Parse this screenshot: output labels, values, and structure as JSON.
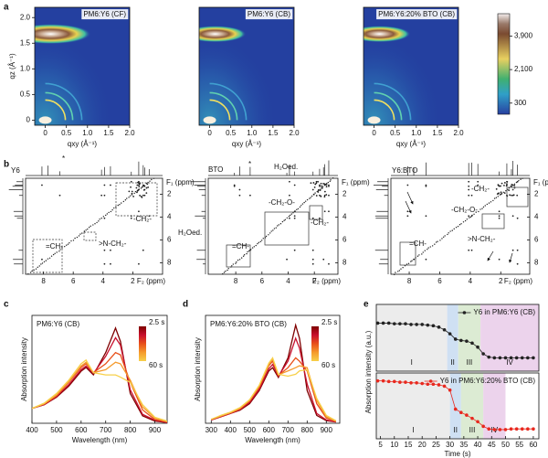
{
  "panel_labels": [
    "a",
    "b",
    "c",
    "d",
    "e"
  ],
  "chart_data": [
    {
      "type": "heatmap",
      "title": "PM6:Y6 (CF)",
      "xlabel": "qxy (Å⁻¹)",
      "ylabel": "qz (Å⁻¹)",
      "xlim": [
        -0.25,
        2.0
      ],
      "ylim": [
        -0.1,
        2.2
      ],
      "xticks": [
        0,
        0.5,
        {
          "value": 1,
          "label": "1.0"
        },
        1.5,
        {
          "value": 2,
          "label": "2.0"
        }
      ],
      "yticks": [
        0,
        0.5,
        {
          "value": 1,
          "label": "1.0"
        },
        1.5,
        {
          "value": 2,
          "label": "2.0"
        }
      ]
    },
    {
      "type": "heatmap",
      "title": "PM6:Y6 (CB)",
      "xlabel": "qxy (Å⁻¹)",
      "xlim": [
        -0.25,
        2.0
      ],
      "ylim": [
        -0.1,
        2.2
      ],
      "xticks": [
        0,
        0.5,
        {
          "value": 1,
          "label": "1.0"
        },
        1.5,
        {
          "value": 2,
          "label": "2.0"
        }
      ]
    },
    {
      "type": "heatmap",
      "title": "PM6:Y6:20% BTO (CB)",
      "xlabel": "qxy (Å⁻¹)",
      "xlim": [
        -0.25,
        2.0
      ],
      "ylim": [
        -0.1,
        2.2
      ],
      "xticks": [
        0,
        0.5,
        {
          "value": 1,
          "label": "1.0"
        },
        1.5,
        {
          "value": 2,
          "label": "2.0"
        }
      ]
    },
    {
      "type": "colorbar",
      "clim": [
        -300,
        5100
      ],
      "ticks": [
        300,
        {
          "value": 2100,
          "label": "2,100"
        },
        {
          "value": 3900,
          "label": "3,900"
        }
      ]
    },
    {
      "type": "nmr",
      "label": "Y6",
      "xlabel": "F₂ (ppm)",
      "ylabel": "F₁ (ppm)",
      "xlim": [
        9.2,
        0
      ],
      "ylim": [
        0.6,
        9.0
      ],
      "xticks": [
        8,
        6,
        4,
        2
      ],
      "yticks": [
        2,
        4,
        6,
        8
      ],
      "annotations": [
        "*",
        "=CH-",
        ">N-CH₂-",
        "-CH₂-"
      ]
    },
    {
      "type": "nmr",
      "label": "BTO",
      "xlabel": "F₂ (ppm)",
      "ylabel": "F₁ (ppm)",
      "xlim": [
        10.1,
        0.2
      ],
      "ylim": [
        0.6,
        9.0
      ],
      "xticks": [
        8,
        6,
        4,
        2
      ],
      "yticks": [
        2,
        4,
        6,
        8
      ],
      "annotations": [
        "*",
        "H₂Oed.",
        "-CH₂-O-",
        "-CH₂-",
        "H₂Oed.",
        "=CH-"
      ]
    },
    {
      "type": "nmr",
      "label": "Y6:BTO",
      "xlabel": "F₂ (ppm)",
      "ylabel": "F₁ (ppm)",
      "xlim": [
        9.2,
        0.1
      ],
      "ylim": [
        0.6,
        9.0
      ],
      "xticks": [
        8,
        6,
        4,
        2
      ],
      "yticks": [
        2,
        4,
        6,
        8
      ],
      "annotations": [
        "-CH₂-",
        "-CH₂-O-",
        ">N-CH₂-",
        "=CH-"
      ]
    },
    {
      "type": "line",
      "title": "PM6:Y6 (CB)",
      "xlabel": "Wavelength (nm)",
      "ylabel": "Absorption intensity",
      "x": [
        400,
        450,
        500,
        550,
        600,
        620,
        650,
        700,
        740,
        760,
        800,
        850,
        900,
        950
      ],
      "xlim": [
        400,
        950
      ],
      "xticks": [
        400,
        500,
        600,
        700,
        800,
        900
      ],
      "ylim": [
        0,
        1.45
      ],
      "legend_labels": [
        "2.5 s",
        "60 s"
      ],
      "series": [
        {
          "color": "#7f0000",
          "values": [
            0.2,
            0.25,
            0.35,
            0.5,
            0.7,
            0.75,
            0.65,
            0.95,
            1.28,
            1.1,
            0.4,
            0.1,
            0.03,
            0.01
          ]
        },
        {
          "color": "#c8102e",
          "values": [
            0.2,
            0.25,
            0.36,
            0.52,
            0.72,
            0.77,
            0.67,
            0.9,
            1.15,
            1.05,
            0.45,
            0.12,
            0.04,
            0.01
          ]
        },
        {
          "color": "#e8501a",
          "values": [
            0.2,
            0.26,
            0.37,
            0.55,
            0.75,
            0.8,
            0.68,
            0.8,
            0.95,
            0.92,
            0.55,
            0.18,
            0.05,
            0.02
          ]
        },
        {
          "color": "#f59a2c",
          "values": [
            0.2,
            0.26,
            0.38,
            0.56,
            0.77,
            0.82,
            0.68,
            0.72,
            0.82,
            0.8,
            0.58,
            0.22,
            0.07,
            0.02
          ]
        },
        {
          "color": "#f7d04a",
          "values": [
            0.2,
            0.27,
            0.4,
            0.58,
            0.8,
            0.85,
            0.68,
            0.65,
            0.65,
            0.62,
            0.55,
            0.25,
            0.08,
            0.03
          ]
        }
      ]
    },
    {
      "type": "line",
      "title": "PM6:Y6:20% BTO (CB)",
      "xlabel": "Wavelength (nm)",
      "ylabel": "Absorption intensity",
      "x": [
        300,
        350,
        400,
        450,
        500,
        550,
        600,
        620,
        650,
        700,
        740,
        760,
        800,
        850,
        900,
        950
      ],
      "xlim": [
        270,
        970
      ],
      "xticks": [
        300,
        400,
        500,
        600,
        700,
        800,
        900
      ],
      "ylim": [
        0,
        1.65
      ],
      "legend_labels": [
        "2.5 s",
        "60 s"
      ],
      "series": [
        {
          "color": "#7f0000",
          "values": [
            0.05,
            0.1,
            0.15,
            0.2,
            0.3,
            0.5,
            0.8,
            0.85,
            0.7,
            1.0,
            1.5,
            1.3,
            0.5,
            0.12,
            0.04,
            0.02
          ]
        },
        {
          "color": "#c8102e",
          "values": [
            0.05,
            0.1,
            0.15,
            0.21,
            0.32,
            0.52,
            0.83,
            0.9,
            0.72,
            0.95,
            1.3,
            1.15,
            0.6,
            0.15,
            0.05,
            0.02
          ]
        },
        {
          "color": "#e8501a",
          "values": [
            0.06,
            0.11,
            0.16,
            0.22,
            0.34,
            0.55,
            0.88,
            0.95,
            0.73,
            0.85,
            1.0,
            0.95,
            0.8,
            0.3,
            0.08,
            0.03
          ]
        },
        {
          "color": "#f59a2c",
          "values": [
            0.06,
            0.11,
            0.16,
            0.23,
            0.35,
            0.57,
            0.9,
            0.98,
            0.74,
            0.8,
            0.85,
            0.88,
            0.85,
            0.35,
            0.1,
            0.03
          ]
        },
        {
          "color": "#f7d04a",
          "values": [
            0.06,
            0.12,
            0.17,
            0.24,
            0.36,
            0.58,
            0.92,
            1.0,
            0.75,
            0.72,
            0.75,
            0.8,
            0.82,
            0.38,
            0.12,
            0.04
          ]
        }
      ]
    },
    {
      "type": "kinetics",
      "ylabel": "Absorption intensity (a.u.)",
      "x": [
        4,
        6,
        8,
        10,
        12,
        14,
        16,
        18,
        20,
        22,
        24,
        26,
        28,
        30,
        32,
        34,
        36,
        38,
        40,
        42,
        44,
        46,
        48,
        50,
        52,
        54,
        56,
        58,
        60
      ],
      "xlim": [
        3.5,
        62
      ],
      "ylim": [
        0,
        1
      ],
      "regions": [
        {
          "label": "I",
          "start": 3.5,
          "end": 29,
          "color": "#ececec"
        },
        {
          "label": "II",
          "start": 29,
          "end": 33,
          "color": "#cfe0f3"
        },
        {
          "label": "III",
          "start": 33,
          "end": 41,
          "color": "#dcebd3"
        },
        {
          "label": "IV",
          "start": 41,
          "end": 62,
          "color": "#ecd3ec"
        }
      ],
      "series": [
        {
          "name": "Y6 in PM6:Y6 (CB)",
          "color": "#222222",
          "values": [
            0.72,
            0.72,
            0.72,
            0.71,
            0.71,
            0.71,
            0.7,
            0.7,
            0.7,
            0.69,
            0.68,
            0.66,
            0.62,
            0.56,
            0.48,
            0.46,
            0.45,
            0.42,
            0.36,
            0.26,
            0.21,
            0.2,
            0.2,
            0.2,
            0.2,
            0.2,
            0.2,
            0.2,
            0.2
          ]
        }
      ]
    },
    {
      "type": "kinetics",
      "xlabel": "Time (s)",
      "x": [
        4,
        6,
        8,
        10,
        12,
        14,
        16,
        18,
        20,
        22,
        24,
        26,
        28,
        30,
        32,
        34,
        36,
        38,
        40,
        42,
        44,
        46,
        48,
        50,
        52,
        54,
        56,
        58,
        60
      ],
      "xlim": [
        3.5,
        62
      ],
      "xticks": [
        5,
        10,
        15,
        20,
        25,
        30,
        35,
        40,
        45,
        50,
        55,
        60
      ],
      "ylim": [
        0,
        1
      ],
      "regions": [
        {
          "label": "I",
          "start": 3.5,
          "end": 30,
          "color": "#ececec"
        },
        {
          "label": "II",
          "start": 30,
          "end": 34,
          "color": "#cfe0f3"
        },
        {
          "label": "III",
          "start": 34,
          "end": 42,
          "color": "#dcebd3"
        },
        {
          "label": "IV",
          "start": 42,
          "end": 50,
          "color": "#ecd3ec"
        }
      ],
      "series": [
        {
          "name": "Y6 in PM6:Y6:20% BTO (CB)",
          "color": "#e8281e",
          "values": [
            0.88,
            0.88,
            0.87,
            0.87,
            0.86,
            0.86,
            0.85,
            0.85,
            0.84,
            0.83,
            0.83,
            0.82,
            0.8,
            0.74,
            0.45,
            0.4,
            0.36,
            0.31,
            0.26,
            0.19,
            0.15,
            0.14,
            0.14,
            0.14,
            0.15,
            0.15,
            0.15,
            0.15,
            0.15
          ]
        }
      ]
    }
  ]
}
